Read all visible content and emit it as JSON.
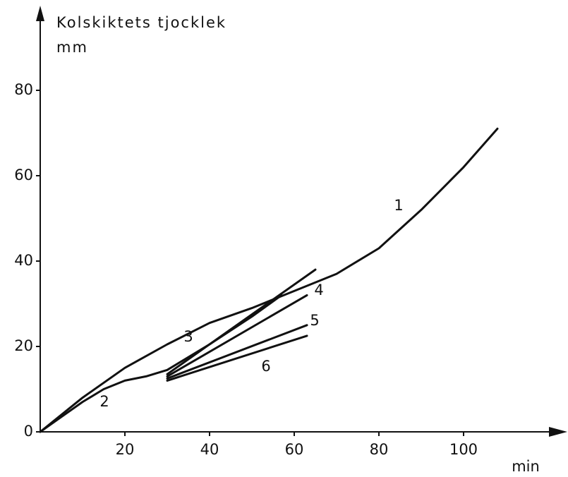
{
  "chart_data": {
    "type": "line",
    "y_label": "Kolskiktets tjocklek",
    "y_unit": "mm",
    "x_label": "min",
    "xlim": [
      0,
      122
    ],
    "ylim": [
      0,
      98.7
    ],
    "xticks": [
      20,
      40,
      60,
      80,
      100
    ],
    "yticks": [
      0,
      20,
      40,
      60,
      80
    ],
    "series": [
      {
        "name": "1",
        "color": "#111111",
        "x": [
          0,
          5,
          10,
          20,
          30,
          40,
          50,
          60,
          70,
          80,
          90,
          100,
          108
        ],
        "values": [
          0,
          4,
          8,
          15,
          20.5,
          25.5,
          29,
          33,
          37,
          43,
          52,
          62,
          71
        ]
      },
      {
        "name": "2",
        "color": "#111111",
        "x": [
          0,
          5,
          10,
          15,
          20,
          25,
          30,
          40,
          50,
          57
        ],
        "values": [
          0,
          3.5,
          7,
          10,
          12,
          13,
          14.5,
          20.5,
          27,
          32
        ]
      },
      {
        "name": "3",
        "color": "#111111",
        "x": [
          30,
          65
        ],
        "values": [
          13.5,
          38
        ]
      },
      {
        "name": "4",
        "color": "#111111",
        "x": [
          30,
          63
        ],
        "values": [
          13,
          32
        ]
      },
      {
        "name": "5",
        "color": "#111111",
        "x": [
          30,
          63
        ],
        "values": [
          12.5,
          25
        ]
      },
      {
        "name": "6",
        "color": "#111111",
        "x": [
          30,
          63
        ],
        "values": [
          12,
          22.5
        ]
      }
    ]
  }
}
